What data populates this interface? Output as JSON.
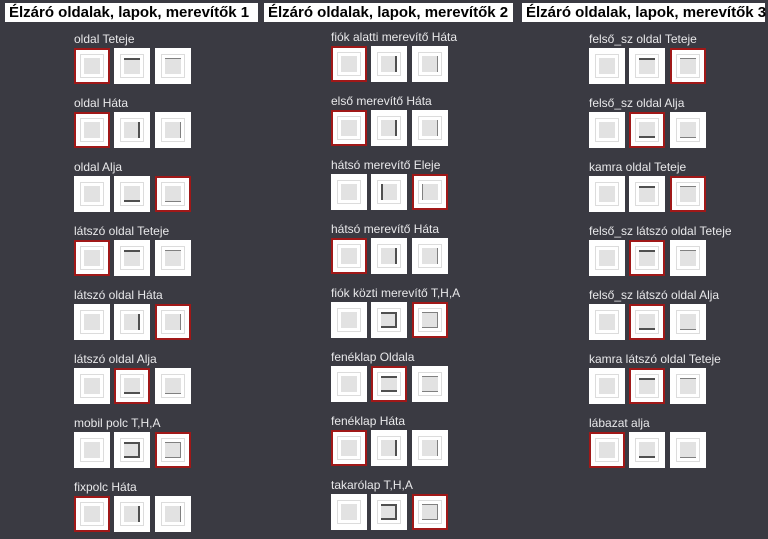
{
  "colors": {
    "background": "#3a3a42",
    "selected_border": "#a01818",
    "edge_thick": "#505050",
    "edge_thin": "#808080"
  },
  "columns": [
    {
      "title": "Élzáró oldalak, lapok, merevítők 1",
      "groups": [
        {
          "label": "oldal Teteje",
          "selected": 0,
          "edges": "t"
        },
        {
          "label": "oldal Háta",
          "selected": 0,
          "edges": "r"
        },
        {
          "label": "oldal Alja",
          "selected": 2,
          "edges": "b"
        },
        {
          "label": "látszó oldal Teteje",
          "selected": 0,
          "edges": "t"
        },
        {
          "label": "látszó oldal Háta",
          "selected": 2,
          "edges": "r"
        },
        {
          "label": "látszó oldal Alja",
          "selected": 1,
          "edges": "b"
        },
        {
          "label": "mobil polc T,H,A",
          "selected": 2,
          "edges": "trb"
        },
        {
          "label": "fixpolc Háta",
          "selected": 0,
          "edges": "r"
        }
      ]
    },
    {
      "title": "Élzáró oldalak, lapok, merevítők 2",
      "groups": [
        {
          "label": "fiók alatti merevítő Háta",
          "selected": 0,
          "edges": "r"
        },
        {
          "label": "első merevítő Háta",
          "selected": 0,
          "edges": "r"
        },
        {
          "label": "hátsó merevítő Eleje",
          "selected": 2,
          "edges": "l"
        },
        {
          "label": "hátsó merevítő Háta",
          "selected": 0,
          "edges": "r"
        },
        {
          "label": "fiók közti merevítő T,H,A",
          "selected": 2,
          "edges": "trb"
        },
        {
          "label": "fenéklap Oldala",
          "selected": 1,
          "edges": "tb"
        },
        {
          "label": "fenéklap Háta",
          "selected": 0,
          "edges": "r"
        },
        {
          "label": "takarólap T,H,A",
          "selected": 2,
          "edges": "trb"
        }
      ]
    },
    {
      "title": "Élzáró oldalak, lapok, merevítők 3",
      "groups": [
        {
          "label": "felső_sz oldal Teteje",
          "selected": 2,
          "edges": "t"
        },
        {
          "label": "felső_sz oldal Alja",
          "selected": 1,
          "edges": "b"
        },
        {
          "label": "kamra oldal Teteje",
          "selected": 2,
          "edges": "t"
        },
        {
          "label": "felső_sz látszó oldal Teteje",
          "selected": 1,
          "edges": "t"
        },
        {
          "label": "felső_sz látszó oldal Alja",
          "selected": 1,
          "edges": "b"
        },
        {
          "label": "kamra látszó oldal Teteje",
          "selected": 1,
          "edges": "t"
        },
        {
          "label": "lábazat alja",
          "selected": 0,
          "edges": "b"
        }
      ]
    }
  ]
}
